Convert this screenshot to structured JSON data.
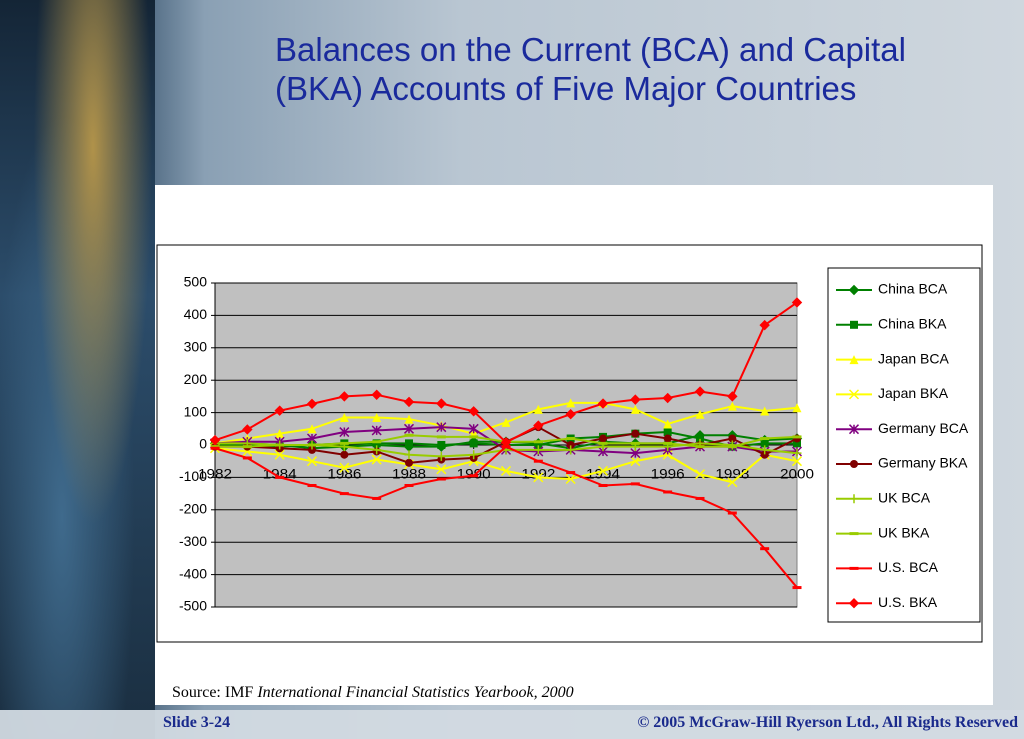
{
  "title": "Balances on the Current (BCA) and Capital (BKA) Accounts of Five Major Countries",
  "source_prefix": "Source: IMF",
  "source_title": "International Financial Statistics Yearbook, 2000",
  "footer_left": "Slide 3-24",
  "footer_right": "© 2005 McGraw-Hill Ryerson Ltd., All Rights Reserved",
  "chart_data": {
    "type": "line",
    "x": [
      1982,
      1983,
      1984,
      1985,
      1986,
      1987,
      1988,
      1989,
      1990,
      1991,
      1992,
      1993,
      1994,
      1995,
      1996,
      1997,
      1998,
      1999,
      2000
    ],
    "xlim": [
      1982,
      2000
    ],
    "xticks": [
      1982,
      1984,
      1986,
      1988,
      1990,
      1992,
      1994,
      1996,
      1998,
      2000
    ],
    "ylim": [
      -500,
      500
    ],
    "yticks": [
      -500,
      -400,
      -300,
      -200,
      -100,
      0,
      100,
      200,
      300,
      400,
      500
    ],
    "grid": true,
    "legend": "right",
    "series": [
      {
        "name": "China BCA",
        "color": "#008000",
        "marker": "diamond",
        "values": [
          5,
          5,
          0,
          -10,
          -5,
          0,
          -5,
          -5,
          10,
          10,
          5,
          -10,
          10,
          5,
          5,
          30,
          30,
          15,
          20
        ]
      },
      {
        "name": "China BKA",
        "color": "#008000",
        "marker": "square",
        "values": [
          0,
          0,
          -5,
          0,
          5,
          5,
          5,
          0,
          5,
          0,
          0,
          20,
          25,
          35,
          40,
          20,
          -5,
          5,
          5
        ]
      },
      {
        "name": "Japan BCA",
        "color": "#ffff00",
        "marker": "triangle",
        "values": [
          5,
          20,
          35,
          50,
          85,
          85,
          80,
          60,
          35,
          70,
          110,
          130,
          130,
          110,
          65,
          95,
          120,
          105,
          115
        ]
      },
      {
        "name": "Japan BKA",
        "color": "#ffff00",
        "marker": "x",
        "values": [
          -10,
          -20,
          -30,
          -50,
          -70,
          -45,
          -60,
          -75,
          -50,
          -80,
          -100,
          -105,
          -80,
          -50,
          -30,
          -90,
          -115,
          -30,
          -50
        ]
      },
      {
        "name": "Germany BCA",
        "color": "#800080",
        "marker": "asterisk",
        "values": [
          5,
          10,
          10,
          20,
          40,
          45,
          50,
          55,
          50,
          -15,
          -20,
          -15,
          -20,
          -25,
          -15,
          -5,
          -5,
          -20,
          -20
        ]
      },
      {
        "name": "Germany BKA",
        "color": "#800000",
        "marker": "circle",
        "values": [
          -5,
          -5,
          -10,
          -15,
          -30,
          -20,
          -55,
          -45,
          -40,
          10,
          55,
          0,
          20,
          35,
          20,
          0,
          20,
          -30,
          20
        ]
      },
      {
        "name": "UK BCA",
        "color": "#99cc00",
        "marker": "plus",
        "values": [
          5,
          5,
          0,
          0,
          -5,
          -15,
          -30,
          -35,
          -30,
          -15,
          -15,
          -15,
          -5,
          -5,
          -5,
          5,
          0,
          -15,
          -25
        ]
      },
      {
        "name": "UK BKA",
        "color": "#99cc00",
        "marker": "dash",
        "values": [
          -5,
          -5,
          0,
          0,
          5,
          10,
          30,
          25,
          25,
          10,
          10,
          20,
          5,
          5,
          5,
          -5,
          -5,
          20,
          25
        ]
      },
      {
        "name": "U.S. BCA",
        "color": "#ff0000",
        "marker": "dash",
        "values": [
          -10,
          -40,
          -100,
          -125,
          -150,
          -165,
          -125,
          -105,
          -95,
          -5,
          -50,
          -85,
          -125,
          -120,
          -145,
          -165,
          -210,
          -320,
          -440
        ]
      },
      {
        "name": "U.S. BKA",
        "color": "#ff0000",
        "marker": "diamond",
        "values": [
          15,
          48,
          106,
          127,
          150,
          155,
          133,
          128,
          104,
          8,
          60,
          95,
          128,
          140,
          145,
          165,
          150,
          370,
          440
        ]
      }
    ]
  }
}
